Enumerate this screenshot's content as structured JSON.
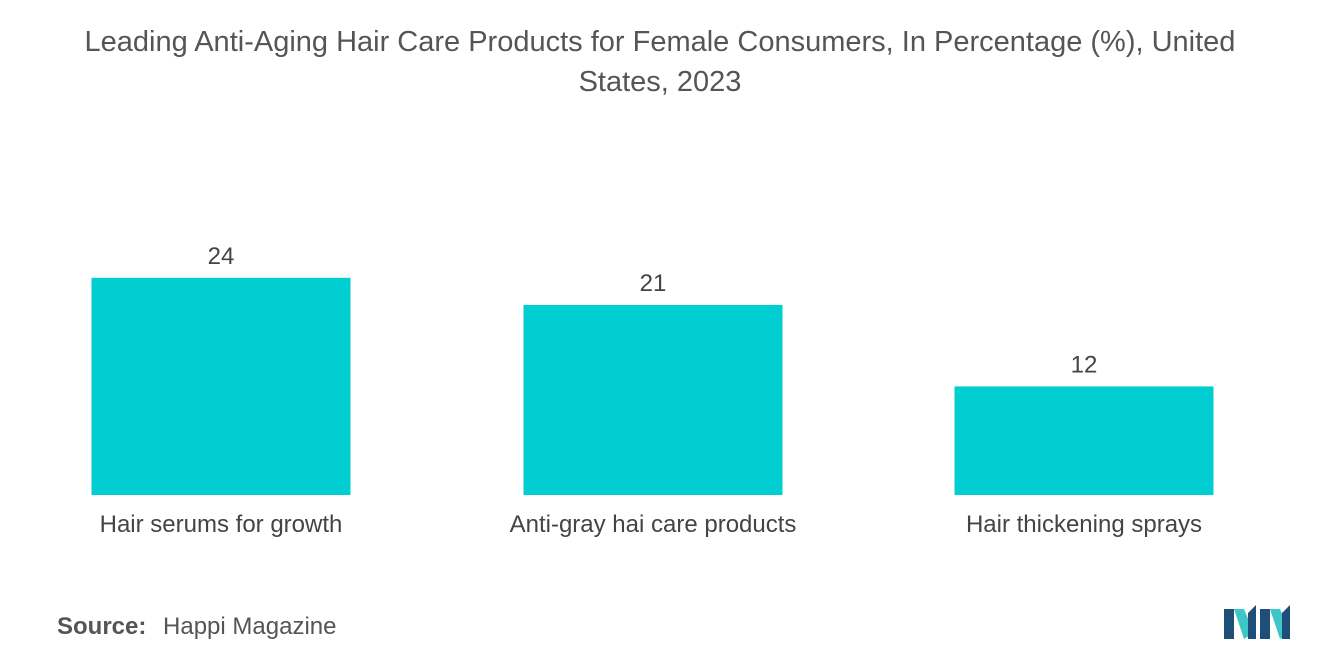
{
  "title_line1": "Leading Anti-Aging Hair Care Products for Female Consumers, In Percentage (%), United",
  "title_line2": "States, 2023",
  "chart_data": {
    "type": "bar",
    "title": "Leading Anti-Aging Hair Care Products for Female Consumers, In Percentage (%), United States, 2023",
    "categories": [
      "Hair serums for growth",
      "Anti-gray hai care products",
      "Hair thickening sprays"
    ],
    "values": [
      24,
      21,
      12
    ],
    "xlabel": "",
    "ylabel": "",
    "ylim": [
      0,
      24
    ],
    "grid": false,
    "bar_color": "#00CED1"
  },
  "source": {
    "label": "Source:",
    "text": "Happi Magazine"
  },
  "colors": {
    "bar": "#00CED1",
    "logo_dark": "#1f4e79",
    "logo_light": "#3ec6c9"
  }
}
